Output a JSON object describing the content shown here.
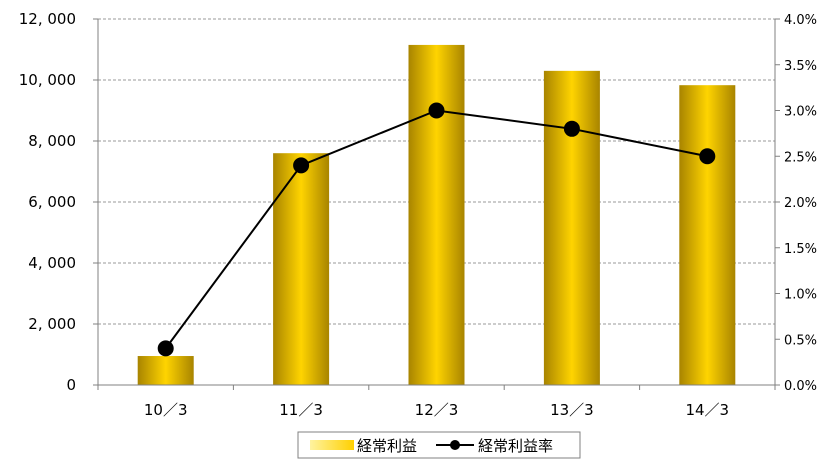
{
  "chart_data": {
    "type": "bar",
    "categories": [
      "10／3",
      "11／3",
      "12／3",
      "13／3",
      "14／3"
    ],
    "series": [
      {
        "name": "経常利益",
        "type": "bar",
        "axis": "left",
        "values": [
          950,
          7600,
          11150,
          10300,
          9830
        ]
      },
      {
        "name": "経常利益率",
        "type": "line",
        "axis": "right",
        "values": [
          0.4,
          2.4,
          3.0,
          2.8,
          2.5
        ]
      }
    ],
    "ylim": [
      0,
      12000
    ],
    "yticks": [
      "0",
      "2, 000",
      "4, 000",
      "6, 000",
      "8, 000",
      "10, 000",
      "12, 000"
    ],
    "y2lim": [
      0,
      4.0
    ],
    "y2ticks": [
      "0.0%",
      "0.5%",
      "1.0%",
      "1.5%",
      "2.0%",
      "2.5%",
      "3.0%",
      "3.5%",
      "4.0%"
    ],
    "grid": true,
    "legend": "bottom-center",
    "colors": {
      "bar_light": "#ffd700",
      "bar_mid": "#e8b800",
      "bar_dark": "#a88400",
      "line": "#000000",
      "grid": "#999999",
      "axis": "#808080"
    }
  }
}
